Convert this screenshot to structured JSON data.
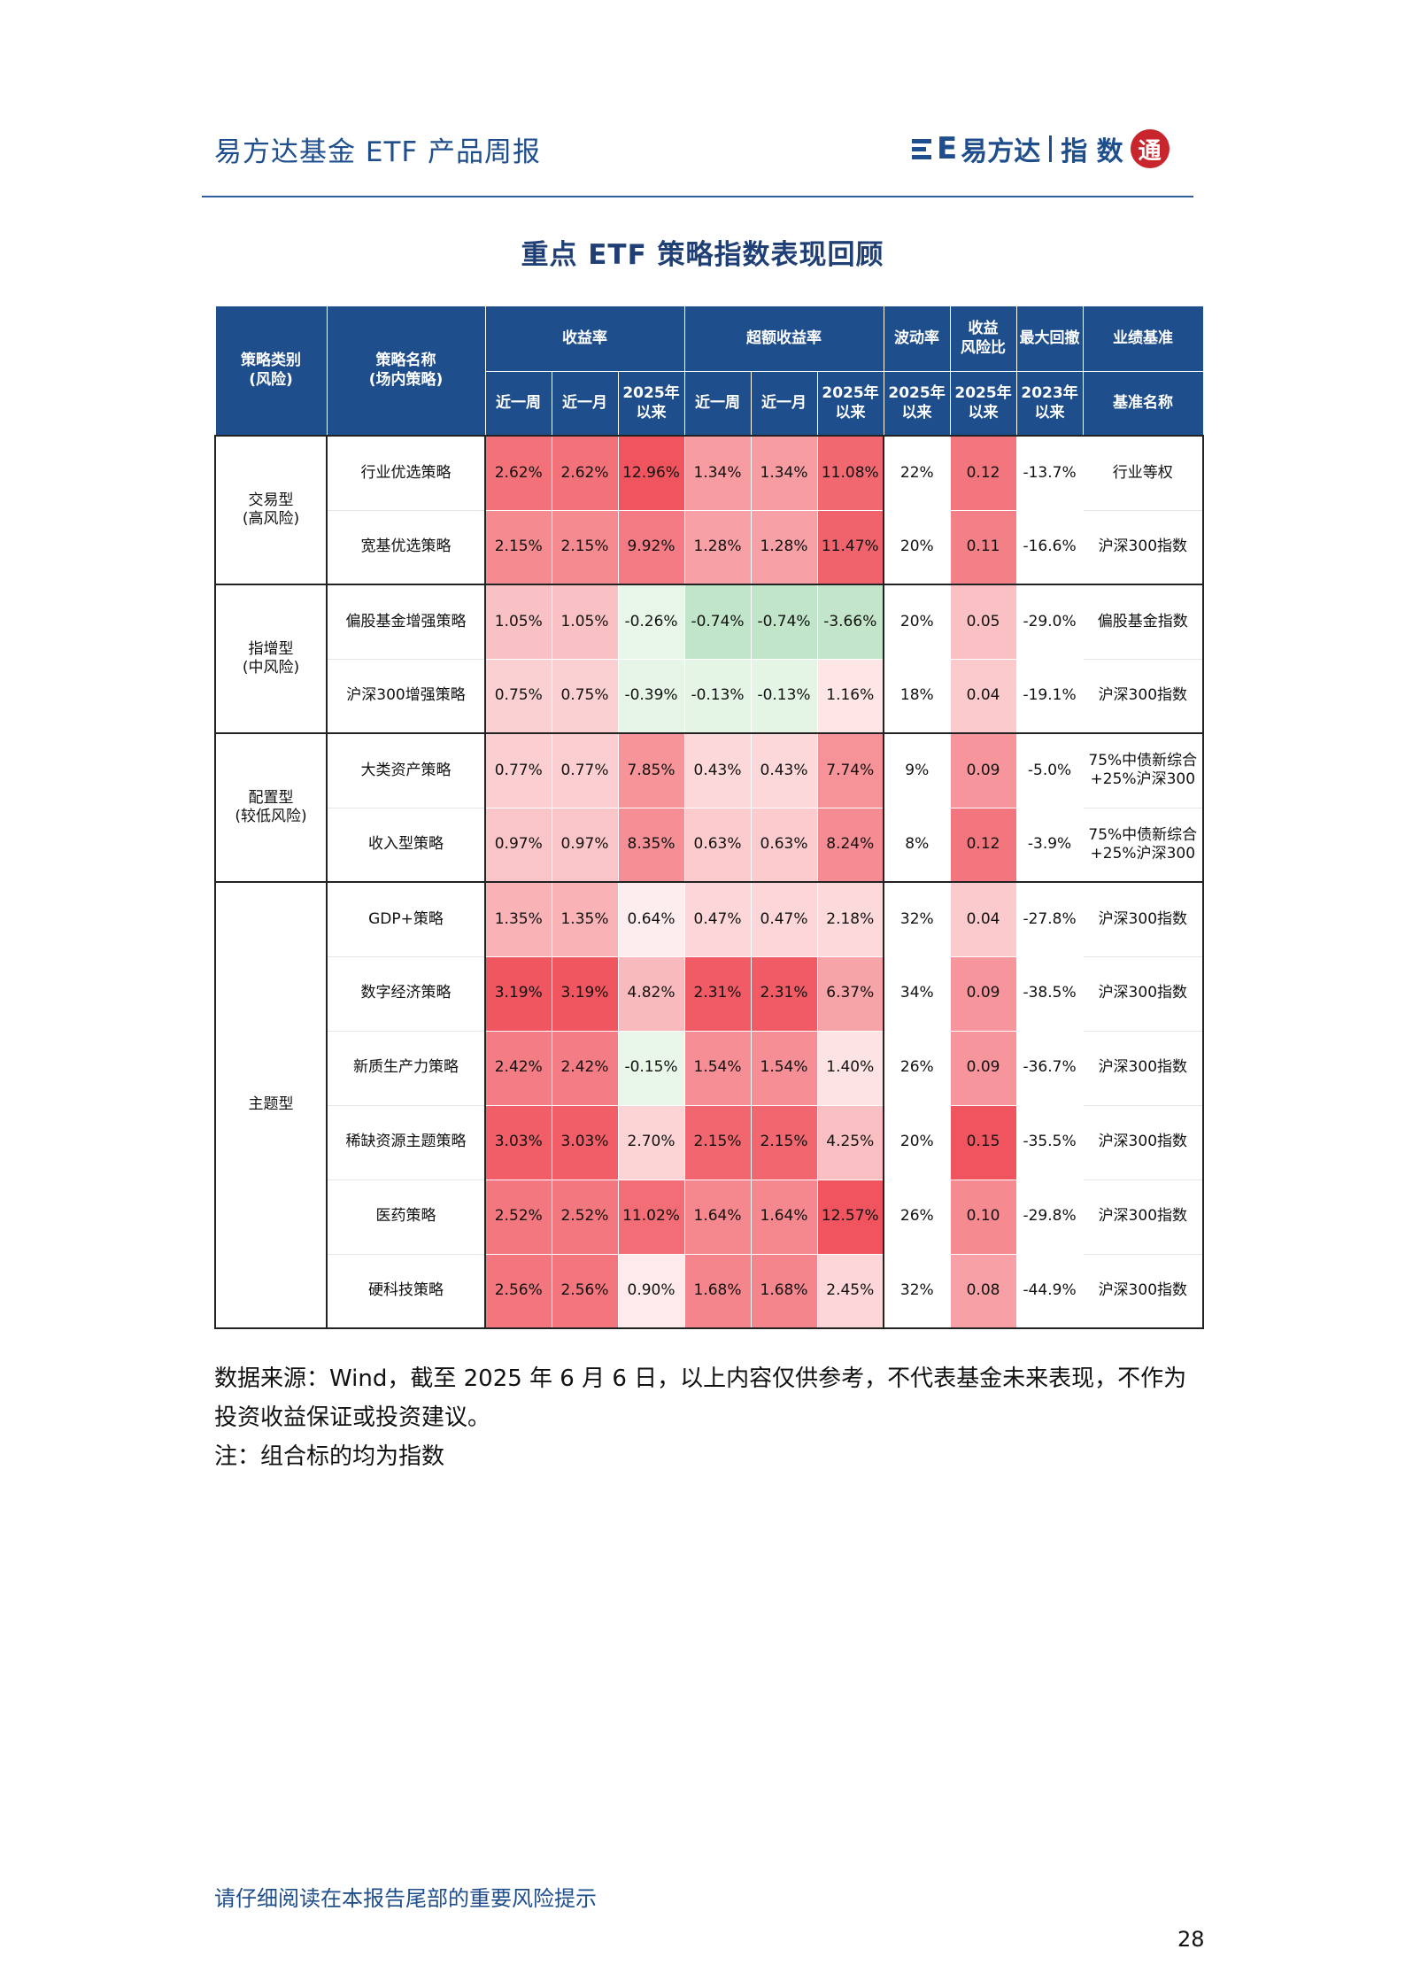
{
  "header": {
    "title": "易方达基金 ETF 产品周报",
    "logo_text": "易方达",
    "logo_sub": "指 数",
    "logo_seal": "通"
  },
  "table_title": "重点 ETF 策略指数表现回顾",
  "columns": {
    "cat": "策略类别\n(风险)",
    "name": "策略名称\n(场内策略)",
    "ret_group": "收益率",
    "excess_group": "超额收益率",
    "vol": "波动率",
    "sharpe": "收益\n风险比",
    "mdd": "最大回撤",
    "bench_group": "业绩基准",
    "sub_week": "近一周",
    "sub_month": "近一月",
    "sub_ytd": "2025年\n以来",
    "sub_vol": "2025年\n以来",
    "sub_sharpe": "2025年\n以来",
    "sub_mdd": "2023年\n以来",
    "sub_bench": "基准名称"
  },
  "groups": [
    {
      "label": "交易型\n(高风险)",
      "rows": [
        {
          "name": "行业优选策略",
          "r1": "2.62%",
          "r2": "2.62%",
          "r3": "12.96%",
          "e1": "1.34%",
          "e2": "1.34%",
          "e3": "11.08%",
          "vol": "22%",
          "sr": "0.12",
          "mdd": "-13.7%",
          "bm": "行业等权"
        },
        {
          "name": "宽基优选策略",
          "r1": "2.15%",
          "r2": "2.15%",
          "r3": "9.92%",
          "e1": "1.28%",
          "e2": "1.28%",
          "e3": "11.47%",
          "vol": "20%",
          "sr": "0.11",
          "mdd": "-16.6%",
          "bm": "沪深300指数"
        }
      ]
    },
    {
      "label": "指增型\n(中风险)",
      "rows": [
        {
          "name": "偏股基金增强策略",
          "r1": "1.05%",
          "r2": "1.05%",
          "r3": "-0.26%",
          "e1": "-0.74%",
          "e2": "-0.74%",
          "e3": "-3.66%",
          "vol": "20%",
          "sr": "0.05",
          "mdd": "-29.0%",
          "bm": "偏股基金指数"
        },
        {
          "name": "沪深300增强策略",
          "r1": "0.75%",
          "r2": "0.75%",
          "r3": "-0.39%",
          "e1": "-0.13%",
          "e2": "-0.13%",
          "e3": "1.16%",
          "vol": "18%",
          "sr": "0.04",
          "mdd": "-19.1%",
          "bm": "沪深300指数"
        }
      ]
    },
    {
      "label": "配置型\n(较低风险)",
      "rows": [
        {
          "name": "大类资产策略",
          "r1": "0.77%",
          "r2": "0.77%",
          "r3": "7.85%",
          "e1": "0.43%",
          "e2": "0.43%",
          "e3": "7.74%",
          "vol": "9%",
          "sr": "0.09",
          "mdd": "-5.0%",
          "bm": "75%中债新综合\n+25%沪深300"
        },
        {
          "name": "收入型策略",
          "r1": "0.97%",
          "r2": "0.97%",
          "r3": "8.35%",
          "e1": "0.63%",
          "e2": "0.63%",
          "e3": "8.24%",
          "vol": "8%",
          "sr": "0.12",
          "mdd": "-3.9%",
          "bm": "75%中债新综合\n+25%沪深300"
        }
      ]
    },
    {
      "label": "主题型",
      "rows": [
        {
          "name": "GDP+策略",
          "r1": "1.35%",
          "r2": "1.35%",
          "r3": "0.64%",
          "e1": "0.47%",
          "e2": "0.47%",
          "e3": "2.18%",
          "vol": "32%",
          "sr": "0.04",
          "mdd": "-27.8%",
          "bm": "沪深300指数"
        },
        {
          "name": "数字经济策略",
          "r1": "3.19%",
          "r2": "3.19%",
          "r3": "4.82%",
          "e1": "2.31%",
          "e2": "2.31%",
          "e3": "6.37%",
          "vol": "34%",
          "sr": "0.09",
          "mdd": "-38.5%",
          "bm": "沪深300指数"
        },
        {
          "name": "新质生产力策略",
          "r1": "2.42%",
          "r2": "2.42%",
          "r3": "-0.15%",
          "e1": "1.54%",
          "e2": "1.54%",
          "e3": "1.40%",
          "vol": "26%",
          "sr": "0.09",
          "mdd": "-36.7%",
          "bm": "沪深300指数"
        },
        {
          "name": "稀缺资源主题策略",
          "r1": "3.03%",
          "r2": "3.03%",
          "r3": "2.70%",
          "e1": "2.15%",
          "e2": "2.15%",
          "e3": "4.25%",
          "vol": "20%",
          "sr": "0.15",
          "mdd": "-35.5%",
          "bm": "沪深300指数"
        },
        {
          "name": "医药策略",
          "r1": "2.52%",
          "r2": "2.52%",
          "r3": "11.02%",
          "e1": "1.64%",
          "e2": "1.64%",
          "e3": "12.57%",
          "vol": "26%",
          "sr": "0.10",
          "mdd": "-29.8%",
          "bm": "沪深300指数"
        },
        {
          "name": "硬科技策略",
          "r1": "2.56%",
          "r2": "2.56%",
          "r3": "0.90%",
          "e1": "1.68%",
          "e2": "1.68%",
          "e3": "2.45%",
          "vol": "32%",
          "sr": "0.08",
          "mdd": "-44.9%",
          "bm": "沪深300指数"
        }
      ]
    }
  ],
  "notes": {
    "line1": "数据来源：Wind，截至 2025 年 6 月 6 日，以上内容仅供参考，不代表基金未来表现，不作为投资收益保证或投资建议。",
    "line2": "注：组合标的均为指数"
  },
  "footer": "请仔细阅读在本报告尾部的重要风险提示",
  "page_number": "28"
}
